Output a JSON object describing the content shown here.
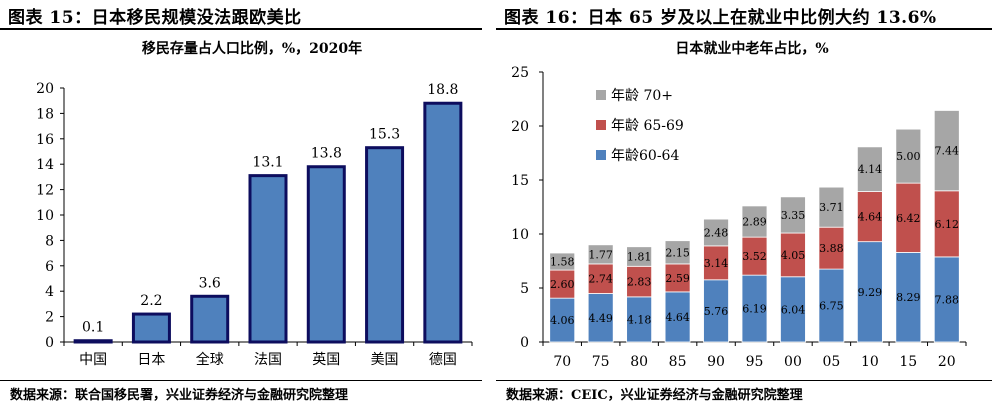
{
  "left": {
    "title": "图表 15：日本移民规模没法跟欧美比",
    "source": "数据来源：联合国移民署，兴业证券经济与金融研究院整理",
    "chart_data": {
      "type": "bar",
      "title": "移民存量占人口比例，%，2020年",
      "categories": [
        "中国",
        "日本",
        "全球",
        "法国",
        "英国",
        "美国",
        "德国"
      ],
      "values": [
        0.1,
        2.2,
        3.6,
        13.1,
        13.8,
        15.3,
        18.8
      ],
      "value_labels": [
        "0.1",
        "2.2",
        "3.6",
        "13.1",
        "13.8",
        "15.3",
        "18.8"
      ],
      "ylim": [
        0,
        20
      ],
      "yticks": [
        "0",
        "2",
        "4",
        "6",
        "8",
        "10",
        "12",
        "14",
        "16",
        "18",
        "20"
      ],
      "grid": false,
      "colors": {
        "bar_fill": "#4f81bd",
        "bar_border": "#0d0d5e"
      }
    }
  },
  "right": {
    "title": "图表 16：日本 65 岁及以上在就业中比例大约 13.6%",
    "source": "数据来源：CEIC，兴业证券经济与金融研究院整理",
    "chart_data": {
      "type": "bar",
      "stacked": true,
      "title": "日本就业中老年占比，%",
      "categories": [
        "70",
        "75",
        "80",
        "85",
        "90",
        "95",
        "00",
        "05",
        "10",
        "15",
        "20"
      ],
      "series": [
        {
          "name": "年龄60-64",
          "color": "#4f81bd",
          "values": [
            4.06,
            4.49,
            4.18,
            4.64,
            5.76,
            6.19,
            6.04,
            6.75,
            9.29,
            8.29,
            7.88
          ],
          "labels": [
            "4.06",
            "4.49",
            "4.18",
            "4.64",
            "5.76",
            "6.19",
            "6.04",
            "6.75",
            "9.29",
            "8.29",
            "7.88"
          ]
        },
        {
          "name": "年龄 65-69",
          "color": "#c0504d",
          "values": [
            2.6,
            2.74,
            2.83,
            2.59,
            3.14,
            3.52,
            4.05,
            3.88,
            4.64,
            6.42,
            6.12
          ],
          "labels": [
            "2.60",
            "2.74",
            "2.83",
            "2.59",
            "3.14",
            "3.52",
            "4.05",
            "3.88",
            "4.64",
            "6.42",
            "6.12"
          ]
        },
        {
          "name": "年龄 70+",
          "color": "#a6a6a6",
          "values": [
            1.58,
            1.77,
            1.81,
            2.15,
            2.48,
            2.89,
            3.35,
            3.71,
            4.14,
            5.0,
            7.44
          ],
          "labels": [
            "1.58",
            "1.77",
            "1.81",
            "2.15",
            "2.48",
            "2.89",
            "3.35",
            "3.71",
            "4.14",
            "5.00",
            "7.44"
          ]
        }
      ],
      "ylim": [
        0,
        25
      ],
      "yticks": [
        "0",
        "5",
        "10",
        "15",
        "20",
        "25"
      ],
      "legend": "top-left",
      "grid": false
    }
  }
}
